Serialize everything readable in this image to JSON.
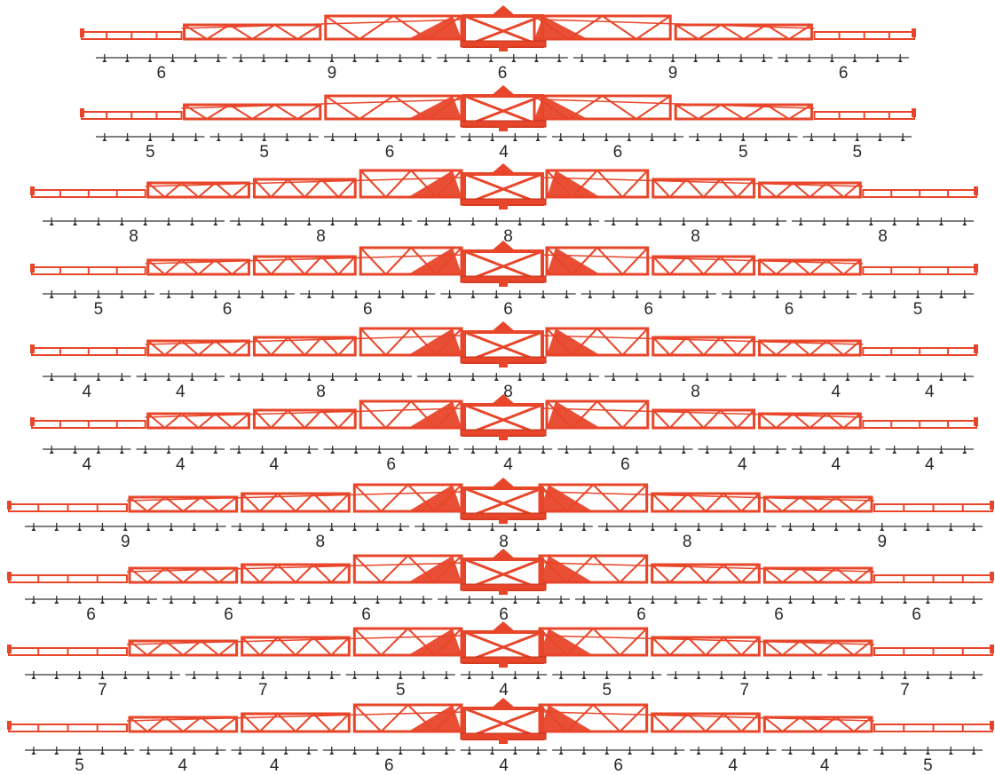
{
  "colors": {
    "boom": "#e8462a",
    "boom_edge": "#c23218",
    "manifold": "#333333",
    "label": "#2a2a2a"
  },
  "rows": [
    {
      "sections": [
        "6",
        "9",
        "6",
        "9",
        "6"
      ]
    },
    {
      "sections": [
        "5",
        "5",
        "6",
        "4",
        "6",
        "5",
        "5"
      ]
    },
    {
      "sections": [
        "8",
        "8",
        "8",
        "8",
        "8"
      ]
    },
    {
      "sections": [
        "5",
        "6",
        "6",
        "6",
        "6",
        "6",
        "5"
      ]
    },
    {
      "sections": [
        "4",
        "4",
        "8",
        "8",
        "8",
        "4",
        "4"
      ]
    },
    {
      "sections": [
        "4",
        "4",
        "4",
        "6",
        "4",
        "6",
        "4",
        "4",
        "4"
      ]
    },
    {
      "sections": [
        "9",
        "8",
        "8",
        "8",
        "9"
      ]
    },
    {
      "sections": [
        "6",
        "6",
        "6",
        "6",
        "6",
        "6",
        "6"
      ]
    },
    {
      "sections": [
        "7",
        "7",
        "5",
        "4",
        "5",
        "7",
        "7"
      ]
    },
    {
      "sections": [
        "5",
        "4",
        "4",
        "6",
        "4",
        "6",
        "4",
        "4",
        "5"
      ]
    }
  ]
}
